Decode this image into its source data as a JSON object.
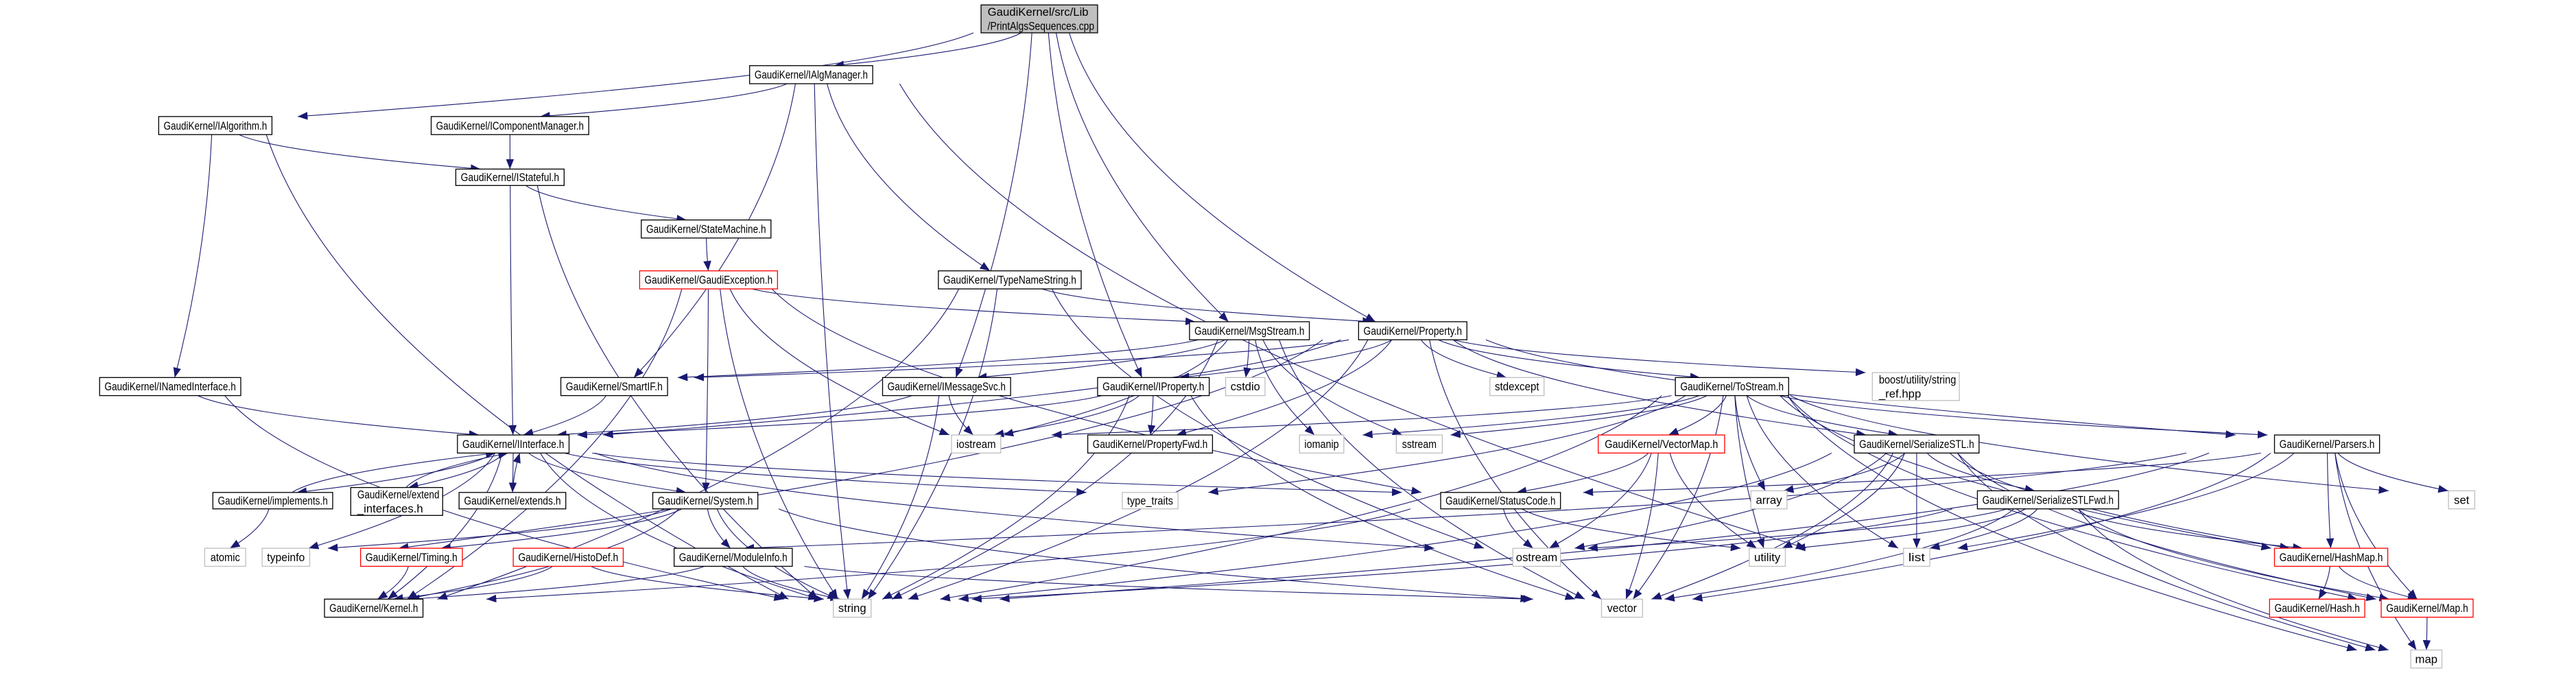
{
  "colors": {
    "edge": "#191970",
    "root_fill": "#bfbfbf",
    "missing_border": "#ff0000",
    "system_border": "#bfbfbf"
  },
  "nodes": {
    "root": {
      "lines": [
        "GaudiKernel/src/Lib",
        "/PrintAlgsSequences.cpp"
      ],
      "style": "root"
    },
    "IAlgManager": {
      "lines": [
        "GaudiKernel/IAlgManager.h"
      ],
      "style": "normal"
    },
    "IAlgorithm": {
      "lines": [
        "GaudiKernel/IAlgorithm.h"
      ],
      "style": "normal"
    },
    "IComponentManager": {
      "lines": [
        "GaudiKernel/IComponentManager.h"
      ],
      "style": "normal"
    },
    "IStateful": {
      "lines": [
        "GaudiKernel/IStateful.h"
      ],
      "style": "normal"
    },
    "StateMachine": {
      "lines": [
        "GaudiKernel/StateMachine.h"
      ],
      "style": "normal"
    },
    "GaudiException": {
      "lines": [
        "GaudiKernel/GaudiException.h"
      ],
      "style": "red"
    },
    "TypeNameString": {
      "lines": [
        "GaudiKernel/TypeNameString.h"
      ],
      "style": "normal"
    },
    "MsgStream": {
      "lines": [
        "GaudiKernel/MsgStream.h"
      ],
      "style": "normal"
    },
    "Property": {
      "lines": [
        "GaudiKernel/Property.h"
      ],
      "style": "normal"
    },
    "INamedInterface": {
      "lines": [
        "GaudiKernel/INamedInterface.h"
      ],
      "style": "normal"
    },
    "SmartIF": {
      "lines": [
        "GaudiKernel/SmartIF.h"
      ],
      "style": "normal"
    },
    "IMessageSvc": {
      "lines": [
        "GaudiKernel/IMessageSvc.h"
      ],
      "style": "normal"
    },
    "IProperty": {
      "lines": [
        "GaudiKernel/IProperty.h"
      ],
      "style": "normal"
    },
    "cstdio": {
      "lines": [
        "cstdio"
      ],
      "style": "gray"
    },
    "stdexcept": {
      "lines": [
        "stdexcept"
      ],
      "style": "gray"
    },
    "ToStream": {
      "lines": [
        "GaudiKernel/ToStream.h"
      ],
      "style": "normal"
    },
    "boost": {
      "lines": [
        "boost/utility/string",
        "_ref.hpp"
      ],
      "style": "gray"
    },
    "IInterface": {
      "lines": [
        "GaudiKernel/IInterface.h"
      ],
      "style": "normal"
    },
    "iostream": {
      "lines": [
        "iostream"
      ],
      "style": "gray"
    },
    "PropertyFwd": {
      "lines": [
        "GaudiKernel/PropertyFwd.h"
      ],
      "style": "normal"
    },
    "iomanip": {
      "lines": [
        "iomanip"
      ],
      "style": "gray"
    },
    "sstream": {
      "lines": [
        "sstream"
      ],
      "style": "gray"
    },
    "VectorMap": {
      "lines": [
        "GaudiKernel/VectorMap.h"
      ],
      "style": "red"
    },
    "SerializeSTL": {
      "lines": [
        "GaudiKernel/SerializeSTL.h"
      ],
      "style": "normal"
    },
    "Parsers": {
      "lines": [
        "GaudiKernel/Parsers.h"
      ],
      "style": "normal"
    },
    "Implements": {
      "lines": [
        "GaudiKernel/implements.h"
      ],
      "style": "normal"
    },
    "extend_interfaces": {
      "lines": [
        "GaudiKernel/extend",
        "_interfaces.h"
      ],
      "style": "normal"
    },
    "extends": {
      "lines": [
        "GaudiKernel/extends.h"
      ],
      "style": "normal"
    },
    "System": {
      "lines": [
        "GaudiKernel/System.h"
      ],
      "style": "normal"
    },
    "type_traits": {
      "lines": [
        "type_traits"
      ],
      "style": "gray"
    },
    "StatusCode": {
      "lines": [
        "GaudiKernel/StatusCode.h"
      ],
      "style": "normal"
    },
    "array": {
      "lines": [
        "array"
      ],
      "style": "gray"
    },
    "SerializeSTLFwd": {
      "lines": [
        "GaudiKernel/SerializeSTLFwd.h"
      ],
      "style": "normal"
    },
    "set": {
      "lines": [
        "set"
      ],
      "style": "gray"
    },
    "atomic": {
      "lines": [
        "atomic"
      ],
      "style": "gray"
    },
    "typeinfo": {
      "lines": [
        "typeinfo"
      ],
      "style": "gray"
    },
    "Timing": {
      "lines": [
        "GaudiKernel/Timing.h"
      ],
      "style": "red"
    },
    "HistoDef": {
      "lines": [
        "GaudiKernel/HistoDef.h"
      ],
      "style": "red"
    },
    "ModuleInfo": {
      "lines": [
        "GaudiKernel/ModuleInfo.h"
      ],
      "style": "normal"
    },
    "ostream": {
      "lines": [
        "ostream"
      ],
      "style": "gray"
    },
    "utility": {
      "lines": [
        "utility"
      ],
      "style": "gray"
    },
    "list": {
      "lines": [
        "list"
      ],
      "style": "gray"
    },
    "HashMap": {
      "lines": [
        "GaudiKernel/HashMap.h"
      ],
      "style": "red"
    },
    "Kernel": {
      "lines": [
        "GaudiKernel/Kernel.h"
      ],
      "style": "normal"
    },
    "string": {
      "lines": [
        "string"
      ],
      "style": "gray"
    },
    "vector": {
      "lines": [
        "vector"
      ],
      "style": "gray"
    },
    "Hash": {
      "lines": [
        "GaudiKernel/Hash.h"
      ],
      "style": "red"
    },
    "Map": {
      "lines": [
        "GaudiKernel/Map.h"
      ],
      "style": "red"
    },
    "map": {
      "lines": [
        "map"
      ],
      "style": "gray"
    }
  },
  "edges": [
    [
      "root",
      "IAlgorithm"
    ],
    [
      "root",
      "IAlgManager"
    ],
    [
      "root",
      "IMessageSvc"
    ],
    [
      "root",
      "IProperty"
    ],
    [
      "root",
      "MsgStream"
    ],
    [
      "root",
      "Property"
    ],
    [
      "IAlgManager",
      "IComponentManager"
    ],
    [
      "IAlgManager",
      "SmartIF"
    ],
    [
      "IAlgManager",
      "string"
    ],
    [
      "IAlgManager",
      "TypeNameString"
    ],
    [
      "IAlgManager",
      "list"
    ],
    [
      "IAlgorithm",
      "IStateful"
    ],
    [
      "IAlgorithm",
      "INamedInterface"
    ],
    [
      "IAlgorithm",
      "string"
    ],
    [
      "IComponentManager",
      "IStateful"
    ],
    [
      "IStateful",
      "IInterface"
    ],
    [
      "IStateful",
      "StateMachine"
    ],
    [
      "IStateful",
      "string"
    ],
    [
      "StateMachine",
      "GaudiException"
    ],
    [
      "GaudiException",
      "Kernel"
    ],
    [
      "GaudiException",
      "string"
    ],
    [
      "GaudiException",
      "System"
    ],
    [
      "GaudiException",
      "iostream"
    ],
    [
      "GaudiException",
      "MsgStream"
    ],
    [
      "GaudiException",
      "StatusCode"
    ],
    [
      "TypeNameString",
      "string"
    ],
    [
      "TypeNameString",
      "ostream"
    ],
    [
      "TypeNameString",
      "Kernel"
    ],
    [
      "TypeNameString",
      "Property"
    ],
    [
      "MsgStream",
      "IMessageSvc"
    ],
    [
      "MsgStream",
      "SmartIF"
    ],
    [
      "MsgStream",
      "cstdio"
    ],
    [
      "MsgStream",
      "iomanip"
    ],
    [
      "MsgStream",
      "sstream"
    ],
    [
      "MsgStream",
      "iostream"
    ],
    [
      "MsgStream",
      "string"
    ],
    [
      "MsgStream",
      "vector"
    ],
    [
      "Property",
      "IProperty"
    ],
    [
      "Property",
      "PropertyFwd"
    ],
    [
      "Property",
      "ToStream"
    ],
    [
      "Property",
      "SerializeSTL"
    ],
    [
      "Property",
      "stdexcept"
    ],
    [
      "Property",
      "string"
    ],
    [
      "Property",
      "boost"
    ],
    [
      "Property",
      "IInterface"
    ],
    [
      "Property",
      "vector"
    ],
    [
      "Property",
      "Parsers"
    ],
    [
      "Property",
      "SmartIF"
    ],
    [
      "Property",
      "typeinfo"
    ],
    [
      "IMessageSvc",
      "IInterface"
    ],
    [
      "IMessageSvc",
      "iostream"
    ],
    [
      "IMessageSvc",
      "string"
    ],
    [
      "IProperty",
      "IInterface"
    ],
    [
      "IProperty",
      "PropertyFwd"
    ],
    [
      "IProperty",
      "iostream"
    ],
    [
      "IProperty",
      "string"
    ],
    [
      "IProperty",
      "vector"
    ],
    [
      "INamedInterface",
      "IInterface"
    ],
    [
      "INamedInterface",
      "string"
    ],
    [
      "SmartIF",
      "IInterface"
    ],
    [
      "IInterface",
      "Implements"
    ],
    [
      "IInterface",
      "extend_interfaces"
    ],
    [
      "IInterface",
      "extends"
    ],
    [
      "IInterface",
      "System"
    ],
    [
      "IInterface",
      "Kernel"
    ],
    [
      "IInterface",
      "StatusCode"
    ],
    [
      "IInterface",
      "type_traits"
    ],
    [
      "IInterface",
      "ostream"
    ],
    [
      "IInterface",
      "string"
    ],
    [
      "IInterface",
      "typeinfo"
    ],
    [
      "Implements",
      "IInterface"
    ],
    [
      "Implements",
      "atomic"
    ],
    [
      "extend_interfaces",
      "IInterface"
    ],
    [
      "extends",
      "IInterface"
    ],
    [
      "System",
      "Kernel"
    ],
    [
      "System",
      "typeinfo"
    ],
    [
      "System",
      "string"
    ],
    [
      "System",
      "vector"
    ],
    [
      "System",
      "ModuleInfo"
    ],
    [
      "System",
      "Timing"
    ],
    [
      "Timing",
      "Kernel"
    ],
    [
      "HistoDef",
      "Kernel"
    ],
    [
      "HistoDef",
      "string"
    ],
    [
      "ModuleInfo",
      "Kernel"
    ],
    [
      "ModuleInfo",
      "string"
    ],
    [
      "ModuleInfo",
      "vector"
    ],
    [
      "ToStream",
      "iostream"
    ],
    [
      "ToStream",
      "iomanip"
    ],
    [
      "ToStream",
      "sstream"
    ],
    [
      "ToStream",
      "string"
    ],
    [
      "ToStream",
      "list"
    ],
    [
      "ToStream",
      "vector"
    ],
    [
      "ToStream",
      "map"
    ],
    [
      "ToStream",
      "set"
    ],
    [
      "ToStream",
      "array"
    ],
    [
      "ToStream",
      "type_traits"
    ],
    [
      "ToStream",
      "utility"
    ],
    [
      "ToStream",
      "SerializeSTL"
    ],
    [
      "ToStream",
      "Parsers"
    ],
    [
      "ToStream",
      "VectorMap"
    ],
    [
      "ToStream",
      "HashMap"
    ],
    [
      "ToStream",
      "Map"
    ],
    [
      "VectorMap",
      "StatusCode"
    ],
    [
      "VectorMap",
      "ostream"
    ],
    [
      "VectorMap",
      "vector"
    ],
    [
      "VectorMap",
      "utility"
    ],
    [
      "StatusCode",
      "ostream"
    ],
    [
      "StatusCode",
      "utility"
    ],
    [
      "StatusCode",
      "Kernel"
    ],
    [
      "SerializeSTL",
      "array"
    ],
    [
      "SerializeSTL",
      "list"
    ],
    [
      "SerializeSTL",
      "utility"
    ],
    [
      "SerializeSTL",
      "SerializeSTLFwd"
    ],
    [
      "SerializeSTL",
      "map"
    ],
    [
      "SerializeSTL",
      "vector"
    ],
    [
      "SerializeSTL",
      "HashMap"
    ],
    [
      "SerializeSTL",
      "Map"
    ],
    [
      "SerializeSTL",
      "ostream"
    ],
    [
      "SerializeSTL",
      "string"
    ],
    [
      "SerializeSTLFwd",
      "list"
    ],
    [
      "SerializeSTLFwd",
      "utility"
    ],
    [
      "SerializeSTLFwd",
      "vector"
    ],
    [
      "SerializeSTLFwd",
      "map"
    ],
    [
      "SerializeSTLFwd",
      "HashMap"
    ],
    [
      "SerializeSTLFwd",
      "Map"
    ],
    [
      "SerializeSTLFwd",
      "string"
    ],
    [
      "SerializeSTLFwd",
      "ostream"
    ],
    [
      "Parsers",
      "string"
    ],
    [
      "Parsers",
      "vector"
    ],
    [
      "Parsers",
      "list"
    ],
    [
      "Parsers",
      "map"
    ],
    [
      "Parsers",
      "set"
    ],
    [
      "Parsers",
      "Map"
    ],
    [
      "Parsers",
      "HashMap"
    ],
    [
      "Parsers",
      "StatusCode"
    ],
    [
      "Parsers",
      "HistoDef"
    ],
    [
      "HashMap",
      "Hash"
    ],
    [
      "HashMap",
      "Map"
    ],
    [
      "Map",
      "map"
    ]
  ]
}
